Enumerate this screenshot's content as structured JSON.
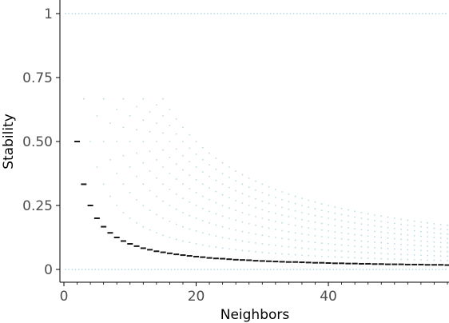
{
  "chart_data": {
    "type": "scatter",
    "xlabel": "Neighbors",
    "ylabel": "Stability",
    "xlim": [
      0,
      58
    ],
    "ylim": [
      0,
      1
    ],
    "x_ticks": [
      0,
      20,
      40
    ],
    "y_ticks": [
      0,
      0.25,
      0.5,
      0.75,
      1
    ],
    "y_tick_labels": [
      "0",
      "0.25",
      "0.50",
      "0.75",
      "1"
    ],
    "x_tick_labels": [
      "0",
      "20",
      "40"
    ],
    "grid": false,
    "legend": "none",
    "colors": {
      "main_series": "#1a1a1a",
      "faint_series": "#9fcfd8",
      "axis": "#000000"
    },
    "series": [
      {
        "style": "dash-markers",
        "rule": "y = 1/n",
        "x": [
          1,
          2,
          3,
          4,
          5,
          6,
          7,
          8,
          9,
          10,
          11,
          12,
          13,
          14,
          15,
          16,
          17,
          18,
          19,
          20,
          21,
          22,
          23,
          24,
          25,
          26,
          27,
          28,
          29,
          30,
          31,
          32,
          33,
          34,
          35,
          36,
          37,
          38,
          39,
          40,
          41,
          42,
          43,
          44,
          45,
          46,
          47,
          48,
          49,
          50,
          51,
          52,
          53,
          54,
          55,
          56,
          57,
          58
        ],
        "values": [
          1,
          0.5,
          0.333,
          0.25,
          0.2,
          0.167,
          0.143,
          0.125,
          0.111,
          0.1,
          0.091,
          0.083,
          0.077,
          0.071,
          0.067,
          0.063,
          0.059,
          0.056,
          0.053,
          0.05,
          0.048,
          0.045,
          0.043,
          0.042,
          0.04,
          0.038,
          0.037,
          0.036,
          0.034,
          0.033,
          0.032,
          0.031,
          0.03,
          0.029,
          0.029,
          0.028,
          0.027,
          0.026,
          0.026,
          0.025,
          0.024,
          0.024,
          0.023,
          0.023,
          0.022,
          0.022,
          0.021,
          0.021,
          0.02,
          0.02,
          0.02,
          0.019,
          0.019,
          0.019,
          0.018,
          0.018,
          0.018,
          0.017
        ]
      },
      {
        "style": "faint-dots",
        "rule": "y = k/n for k = 1..10",
        "k_values": [
          1,
          2,
          3,
          4,
          5,
          6,
          7,
          8,
          9,
          10
        ],
        "x_range": [
          1,
          58
        ]
      },
      {
        "style": "faint-dots",
        "rule": "constant lines",
        "values": [
          0,
          1
        ]
      }
    ]
  }
}
